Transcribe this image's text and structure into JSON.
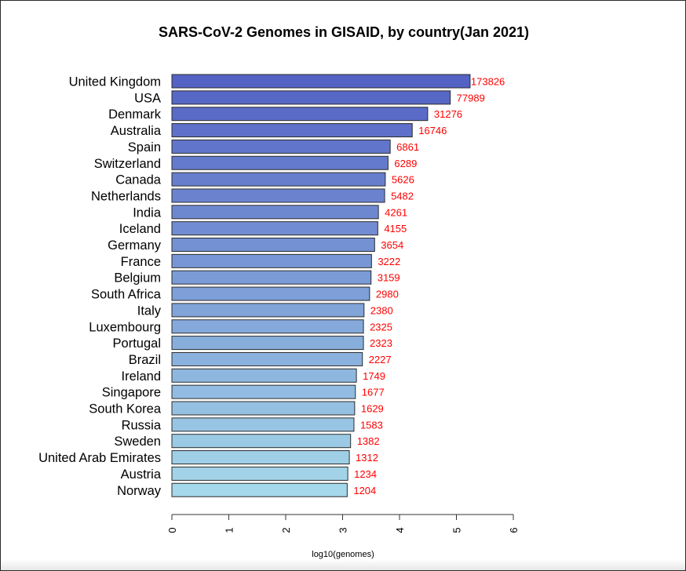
{
  "chart_data": {
    "type": "bar",
    "orientation": "horizontal",
    "title": "SARS-CoV-2 Genomes in GISAID, by country(Jan 2021)",
    "xlabel": "log10(genomes)",
    "ylabel": "",
    "xlim": [
      0,
      6
    ],
    "xticks": [
      "0",
      "1",
      "2",
      "3",
      "4",
      "5",
      "6"
    ],
    "grid": false,
    "legend": "none",
    "categories": [
      "United Kingdom",
      "USA",
      "Denmark",
      "Australia",
      "Spain",
      "Switzerland",
      "Canada",
      "Netherlands",
      "India",
      "Iceland",
      "Germany",
      "France",
      "Belgium",
      "South Africa",
      "Italy",
      "Luxembourg",
      "Portugal",
      "Brazil",
      "Ireland",
      "Singapore",
      "South Korea",
      "Russia",
      "Sweden",
      "United Arab Emirates",
      "Austria",
      "Norway"
    ],
    "genomes": [
      173826,
      77989,
      31276,
      16746,
      6861,
      6289,
      5626,
      5482,
      4261,
      4155,
      3654,
      3222,
      3159,
      2980,
      2380,
      2325,
      2323,
      2227,
      1749,
      1677,
      1629,
      1583,
      1382,
      1312,
      1234,
      1204
    ],
    "value_label_color": "#ff0000",
    "bar_color_top": "#5462c4",
    "bar_color_bottom": "#a5d8ea",
    "bar_border_color": "#2b2b2b"
  }
}
